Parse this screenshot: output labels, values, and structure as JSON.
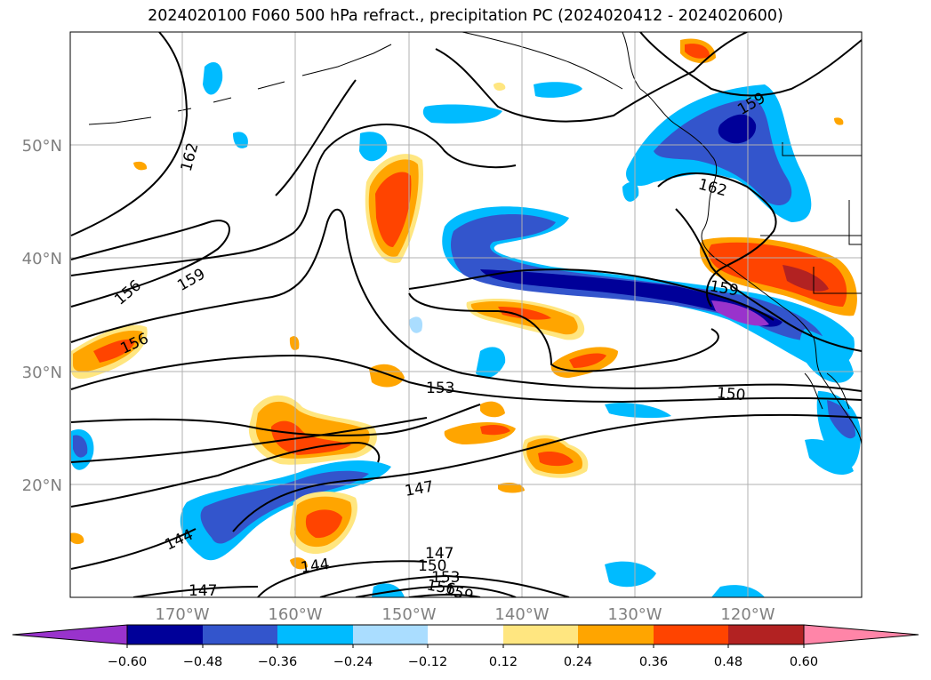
{
  "title": "2024020100 F060 500 hPa refract., precipitation PC (2024020412 - 2024020600)",
  "map": {
    "lat_labels": [
      "50°N",
      "40°N",
      "30°N",
      "20°N"
    ],
    "lon_labels": [
      "170°W",
      "160°W",
      "150°W",
      "140°W",
      "130°W",
      "120°W"
    ],
    "grid": true,
    "contour_labels": [
      "162",
      "159",
      "156",
      "156",
      "153",
      "150",
      "147",
      "144",
      "144",
      "147",
      "147",
      "150",
      "153",
      "156",
      "159",
      "159",
      "162",
      "159"
    ],
    "colors": {
      "land_outline": "#000000",
      "grid": "#b0b0b0",
      "axis_label": "#808080"
    }
  },
  "colorbar": {
    "tick_labels": [
      "−0.60",
      "−0.48",
      "−0.36",
      "−0.24",
      "−0.12",
      "0.12",
      "0.24",
      "0.36",
      "0.48",
      "0.60"
    ],
    "colors": [
      "#9933cc",
      "#000099",
      "#3355cc",
      "#00bbff",
      "#aaddff",
      "#ffffff",
      "#ffe680",
      "#ffa500",
      "#ff4400",
      "#b22222",
      "#ff85a8"
    ]
  }
}
